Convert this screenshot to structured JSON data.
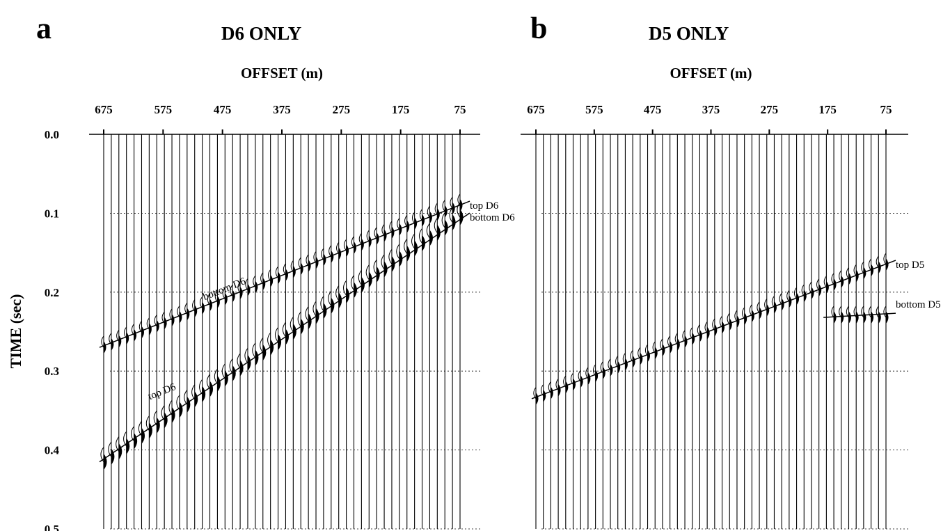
{
  "chart_data": [
    {
      "type": "seismic_gather",
      "panel_label": "a",
      "title": "D6 ONLY",
      "xlabel": "OFFSET (m)",
      "ylabel": "TIME (sec)",
      "x_ticks": [
        675,
        575,
        475,
        375,
        275,
        175,
        75
      ],
      "y_ticks": [
        0.0,
        0.1,
        0.2,
        0.3,
        0.4,
        0.5
      ],
      "xlim": [
        675,
        75
      ],
      "ylim": [
        0.0,
        0.5
      ],
      "trace_offsets_range": [
        675,
        75
      ],
      "trace_count": 48,
      "events": [
        {
          "name": "bottom D6",
          "offsets": [
            675,
            75
          ],
          "times": [
            0.27,
            0.09
          ]
        },
        {
          "name": "top D6",
          "offsets": [
            675,
            75
          ],
          "times": [
            0.415,
            0.105
          ]
        }
      ],
      "annotations": [
        {
          "text": "top D6",
          "offset": 75,
          "time": 0.09
        },
        {
          "text": "bottom D6",
          "offset": 75,
          "time": 0.105
        },
        {
          "text": "bottom D6",
          "offset": 470,
          "time": 0.205
        },
        {
          "text": "top D6",
          "offset": 575,
          "time": 0.335
        }
      ]
    },
    {
      "type": "seismic_gather",
      "panel_label": "b",
      "title": "D5 ONLY",
      "xlabel": "OFFSET (m)",
      "x_ticks": [
        675,
        575,
        475,
        375,
        275,
        175,
        75
      ],
      "y_ticks": [
        0.0,
        0.1,
        0.2,
        0.3,
        0.4,
        0.5
      ],
      "xlim": [
        675,
        75
      ],
      "ylim": [
        0.0,
        0.5
      ],
      "trace_offsets_range": [
        675,
        75
      ],
      "trace_count": 48,
      "events": [
        {
          "name": "top D5",
          "offsets": [
            675,
            75
          ],
          "times": [
            0.335,
            0.165
          ]
        },
        {
          "name": "bottom D5",
          "offsets": [
            175,
            75
          ],
          "times": [
            0.232,
            0.232
          ]
        }
      ],
      "annotations": [
        {
          "text": "top D5",
          "offset": 75,
          "time": 0.165
        },
        {
          "text": "bottom D5",
          "offset": 75,
          "time": 0.215
        }
      ]
    }
  ]
}
